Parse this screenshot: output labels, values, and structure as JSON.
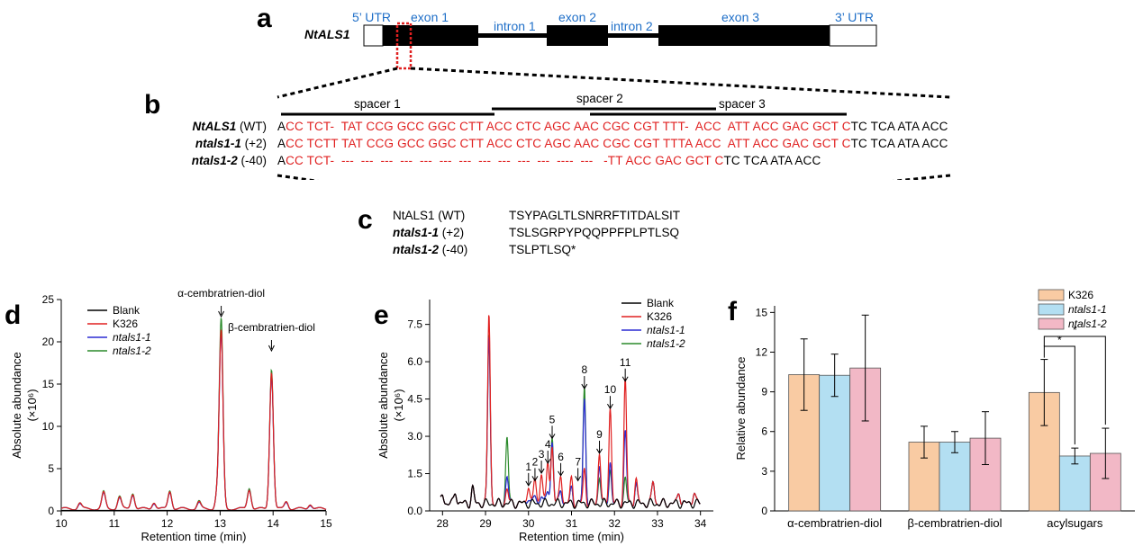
{
  "panel_labels": {
    "a": "a",
    "b": "b",
    "c": "c",
    "d": "d",
    "e": "e",
    "f": "f"
  },
  "gene_structure": {
    "gene_name": "NtALS1",
    "regions": [
      "5’ UTR",
      "exon 1",
      "intron 1",
      "exon 2",
      "intron 2",
      "exon 3",
      "3’ UTR"
    ]
  },
  "alignment": {
    "spacers": [
      "spacer 1",
      "spacer 2",
      "spacer 3"
    ],
    "rows": [
      {
        "name": "NtALS1",
        "suffix": " (WT)",
        "lead": "A",
        "red": "CC TCT-  TAT CCG GCC GGC CTT ACC CTC AGC AAC CGC CGT TTT-  ACC  ATT ACC GAC GCT C",
        "tail": "TC TCA ATA ACC"
      },
      {
        "name": "ntals1-1",
        "suffix": " (+2)",
        "lead": "A",
        "red": "CC TCTT TAT CCG GCC GGC CTT ACC CTC AGC AAC CGC CGT TTTA ACC  ATT ACC GAC GCT C",
        "tail": "TC TCA ATA ACC"
      },
      {
        "name": "ntals1-2",
        "suffix": " (-40)",
        "lead": "A",
        "red": "CC TCT-  ---  ---  ---  ---  ---  ---  ---  ---  ---  ---  ---  ----  ---   -TT ACC GAC GCT C",
        "tail": "TC TCA ATA ACC"
      }
    ]
  },
  "protein": {
    "rows": [
      {
        "name": "NtALS1",
        "suffix": " (WT)",
        "italic": false,
        "seq": "TSYPAGLTLSNRRFTITDALSIT"
      },
      {
        "name": "ntals1-1",
        "suffix": " (+2)",
        "italic": true,
        "seq": "TSLSGRPYPQQPPFPLPTLSQ"
      },
      {
        "name": "ntals1-2",
        "suffix": " (-40)",
        "italic": true,
        "seq": "TSLPTLSQ*"
      }
    ]
  },
  "colors": {
    "blank": "#000000",
    "k326": "#e02020",
    "ntals1_1": "#2b2bd4",
    "ntals1_2": "#2a8a2a",
    "bar_k326": "#f9cba3",
    "bar_ntals1_1": "#b3dff2",
    "bar_ntals1_2": "#f2b8c6",
    "accent_blue": "#1f6fc8"
  },
  "chart_data": [
    {
      "type": "line",
      "panel": "d",
      "xlabel": "Retention time (min)",
      "ylabel": "Absolute abundance",
      "yunit": "(×10⁶)",
      "xlim": [
        10,
        15
      ],
      "ylim": [
        0,
        25
      ],
      "xticks": [
        10,
        11,
        12,
        13,
        14,
        15
      ],
      "yticks": [
        0,
        5,
        10,
        15,
        20,
        25
      ],
      "legend": [
        "Blank",
        "K326",
        "ntals1-1",
        "ntals1-2"
      ],
      "annotations": [
        {
          "text": "α-cembratrien-diol",
          "x": 13.02
        },
        {
          "text": "β-cembratrien-diol",
          "x": 13.97
        }
      ],
      "peaks": [
        {
          "x": 10.35,
          "h": [
            0,
            0.7,
            0.6,
            0.7
          ]
        },
        {
          "x": 10.8,
          "h": [
            0,
            1.9,
            1.8,
            2.0
          ]
        },
        {
          "x": 11.1,
          "h": [
            0,
            1.4,
            1.3,
            1.5
          ]
        },
        {
          "x": 11.35,
          "h": [
            0,
            1.8,
            1.7,
            1.9
          ]
        },
        {
          "x": 11.75,
          "h": [
            0,
            0.8,
            0.7,
            0.8
          ]
        },
        {
          "x": 12.05,
          "h": [
            0,
            2.1,
            2.0,
            2.2
          ]
        },
        {
          "x": 12.6,
          "h": [
            0,
            0.8,
            0.7,
            0.9
          ]
        },
        {
          "x": 12.95,
          "h": [
            0,
            2.0,
            2.0,
            2.0
          ]
        },
        {
          "x": 13.02,
          "h": [
            0,
            20.8,
            20.5,
            22.2
          ]
        },
        {
          "x": 13.55,
          "h": [
            0,
            2.3,
            2.3,
            2.5
          ]
        },
        {
          "x": 13.97,
          "h": [
            0,
            16.2,
            16.0,
            16.6
          ]
        },
        {
          "x": 14.25,
          "h": [
            0,
            0.9,
            0.8,
            0.9
          ]
        },
        {
          "x": 14.7,
          "h": [
            0,
            0.6,
            0.5,
            0.6
          ]
        }
      ]
    },
    {
      "type": "line",
      "panel": "e",
      "xlabel": "Retention time (min)",
      "ylabel": "Absolute abundance",
      "yunit": "(×10⁶)",
      "xlim": [
        27.7,
        34.3
      ],
      "ylim": [
        0,
        8.5
      ],
      "xticks": [
        28,
        29,
        30,
        31,
        32,
        33,
        34
      ],
      "yticks": [
        0.0,
        1.5,
        3.0,
        4.5,
        6.0,
        7.5
      ],
      "legend": [
        "Blank",
        "K326",
        "ntals1-1",
        "ntals1-2"
      ],
      "numbered_peaks": [
        {
          "n": "1",
          "x": 30.0
        },
        {
          "n": "2",
          "x": 30.15
        },
        {
          "n": "3",
          "x": 30.3
        },
        {
          "n": "4",
          "x": 30.45
        },
        {
          "n": "5",
          "x": 30.55
        },
        {
          "n": "6",
          "x": 30.75
        },
        {
          "n": "7",
          "x": 31.15
        },
        {
          "n": "8",
          "x": 31.3
        },
        {
          "n": "9",
          "x": 31.65
        },
        {
          "n": "10",
          "x": 31.9
        },
        {
          "n": "11",
          "x": 32.25
        }
      ],
      "peaks": [
        {
          "x": 28.0,
          "h": [
            0.4,
            0.4,
            0.4,
            0.4
          ]
        },
        {
          "x": 28.3,
          "h": [
            0.5,
            0.5,
            0.5,
            0.5
          ]
        },
        {
          "x": 28.7,
          "h": [
            0.6,
            0.6,
            0.6,
            0.6
          ]
        },
        {
          "x": 29.08,
          "h": [
            0,
            7.7,
            6.8,
            6.9
          ]
        },
        {
          "x": 29.5,
          "h": [
            0,
            0.6,
            1.1,
            2.7
          ]
        },
        {
          "x": 30.0,
          "h": [
            0,
            0.8,
            0.3,
            0.3
          ]
        },
        {
          "x": 30.15,
          "h": [
            0,
            1.0,
            0.3,
            0.3
          ]
        },
        {
          "x": 30.3,
          "h": [
            0,
            1.3,
            0.4,
            0.4
          ]
        },
        {
          "x": 30.45,
          "h": [
            0,
            1.7,
            0.5,
            0.5
          ]
        },
        {
          "x": 30.55,
          "h": [
            0,
            2.3,
            2.5,
            2.7
          ]
        },
        {
          "x": 30.75,
          "h": [
            0,
            1.2,
            0.6,
            0.6
          ]
        },
        {
          "x": 31.0,
          "h": [
            0,
            1.0,
            0.6,
            0.6
          ]
        },
        {
          "x": 31.3,
          "h": [
            0,
            1.4,
            4.2,
            4.7
          ]
        },
        {
          "x": 31.65,
          "h": [
            0,
            2.1,
            1.6,
            1.1
          ]
        },
        {
          "x": 31.9,
          "h": [
            0,
            3.9,
            1.7,
            1.4
          ]
        },
        {
          "x": 32.25,
          "h": [
            0,
            5.0,
            2.9,
            1.0
          ]
        },
        {
          "x": 32.5,
          "h": [
            0,
            1.0,
            0.8,
            0.8
          ]
        },
        {
          "x": 32.9,
          "h": [
            0,
            0.9,
            0.9,
            0.9
          ]
        },
        {
          "x": 33.5,
          "h": [
            0,
            0.5,
            0.5,
            0.5
          ]
        },
        {
          "x": 33.85,
          "h": [
            0,
            0.5,
            0.5,
            0.5
          ]
        }
      ]
    },
    {
      "type": "bar",
      "panel": "f",
      "categories": [
        "α-cembratrien-diol",
        "β-cembratrien-diol",
        "acylsugars"
      ],
      "ylabel": "Relative abundance",
      "ylim": [
        0,
        15.5
      ],
      "yticks": [
        0,
        3,
        6,
        9,
        12,
        15
      ],
      "series": [
        {
          "name": "K326",
          "values": [
            10.3,
            5.2,
            8.95
          ],
          "err": [
            2.7,
            1.2,
            2.5
          ]
        },
        {
          "name": "ntals1-1",
          "values": [
            10.25,
            5.2,
            4.15
          ],
          "err": [
            1.6,
            0.8,
            0.6
          ]
        },
        {
          "name": "ntals1-2",
          "values": [
            10.8,
            5.5,
            4.35
          ],
          "err": [
            4.0,
            2.0,
            1.9
          ]
        }
      ],
      "significance": [
        "*",
        "*"
      ]
    }
  ]
}
